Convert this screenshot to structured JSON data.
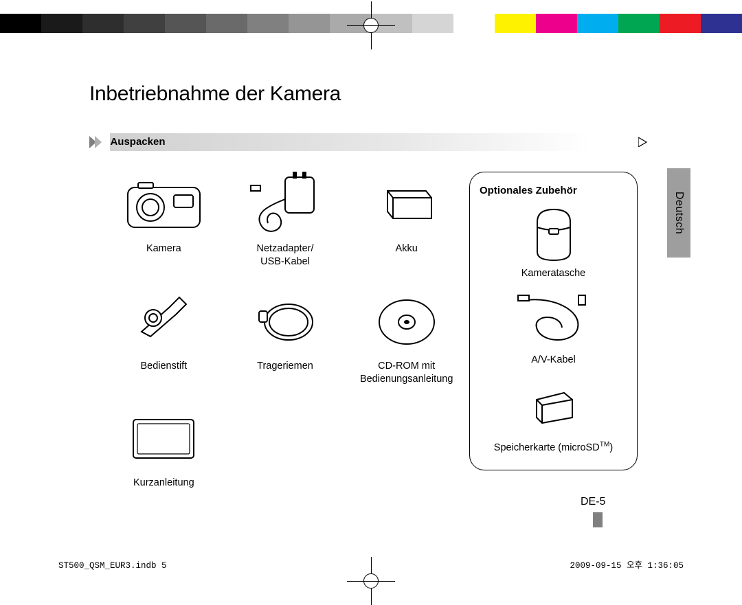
{
  "colorbar": {
    "colors": [
      "#000000",
      "#1a1a1a",
      "#2e2e2e",
      "#404040",
      "#555555",
      "#6a6a6a",
      "#808080",
      "#959595",
      "#aaaaaa",
      "#c0c0c0",
      "#d5d5d5",
      "#ffffff",
      "#fff200",
      "#ec008c",
      "#00aeef",
      "#00a651",
      "#ed1c24",
      "#2e3192"
    ],
    "height": 28
  },
  "page": {
    "title": "Inbetriebnahme der Kamera",
    "section_label": "Auspacken",
    "language_tab": "Deutsch",
    "page_number": "DE-5",
    "footer_left": "ST500_QSM_EUR3.indb   5",
    "footer_right": "2009-09-15   오후 1:36:05",
    "section_arrow_color": "#808080",
    "langtab_bg": "#9e9e9e"
  },
  "items": [
    {
      "label": "Kamera",
      "kind": "camera"
    },
    {
      "label": "Netzadapter/\nUSB-Kabel",
      "kind": "adapter"
    },
    {
      "label": "Akku",
      "kind": "battery"
    },
    {
      "label": "Bedienstift",
      "kind": "stylus"
    },
    {
      "label": "Trageriemen",
      "kind": "strap"
    },
    {
      "label": "CD-ROM mit\nBedienungsanleitung",
      "kind": "cdrom"
    },
    {
      "label": "Kurzanleitung",
      "kind": "booklet"
    }
  ],
  "optional": {
    "title": "Optionales Zubehör",
    "items": [
      {
        "label": "Kameratasche",
        "kind": "case"
      },
      {
        "label": "A/V-Kabel",
        "kind": "avcable"
      },
      {
        "label_html": "Speicherkarte (microSD<sup>TM</sup>)",
        "kind": "sdcard"
      }
    ]
  }
}
